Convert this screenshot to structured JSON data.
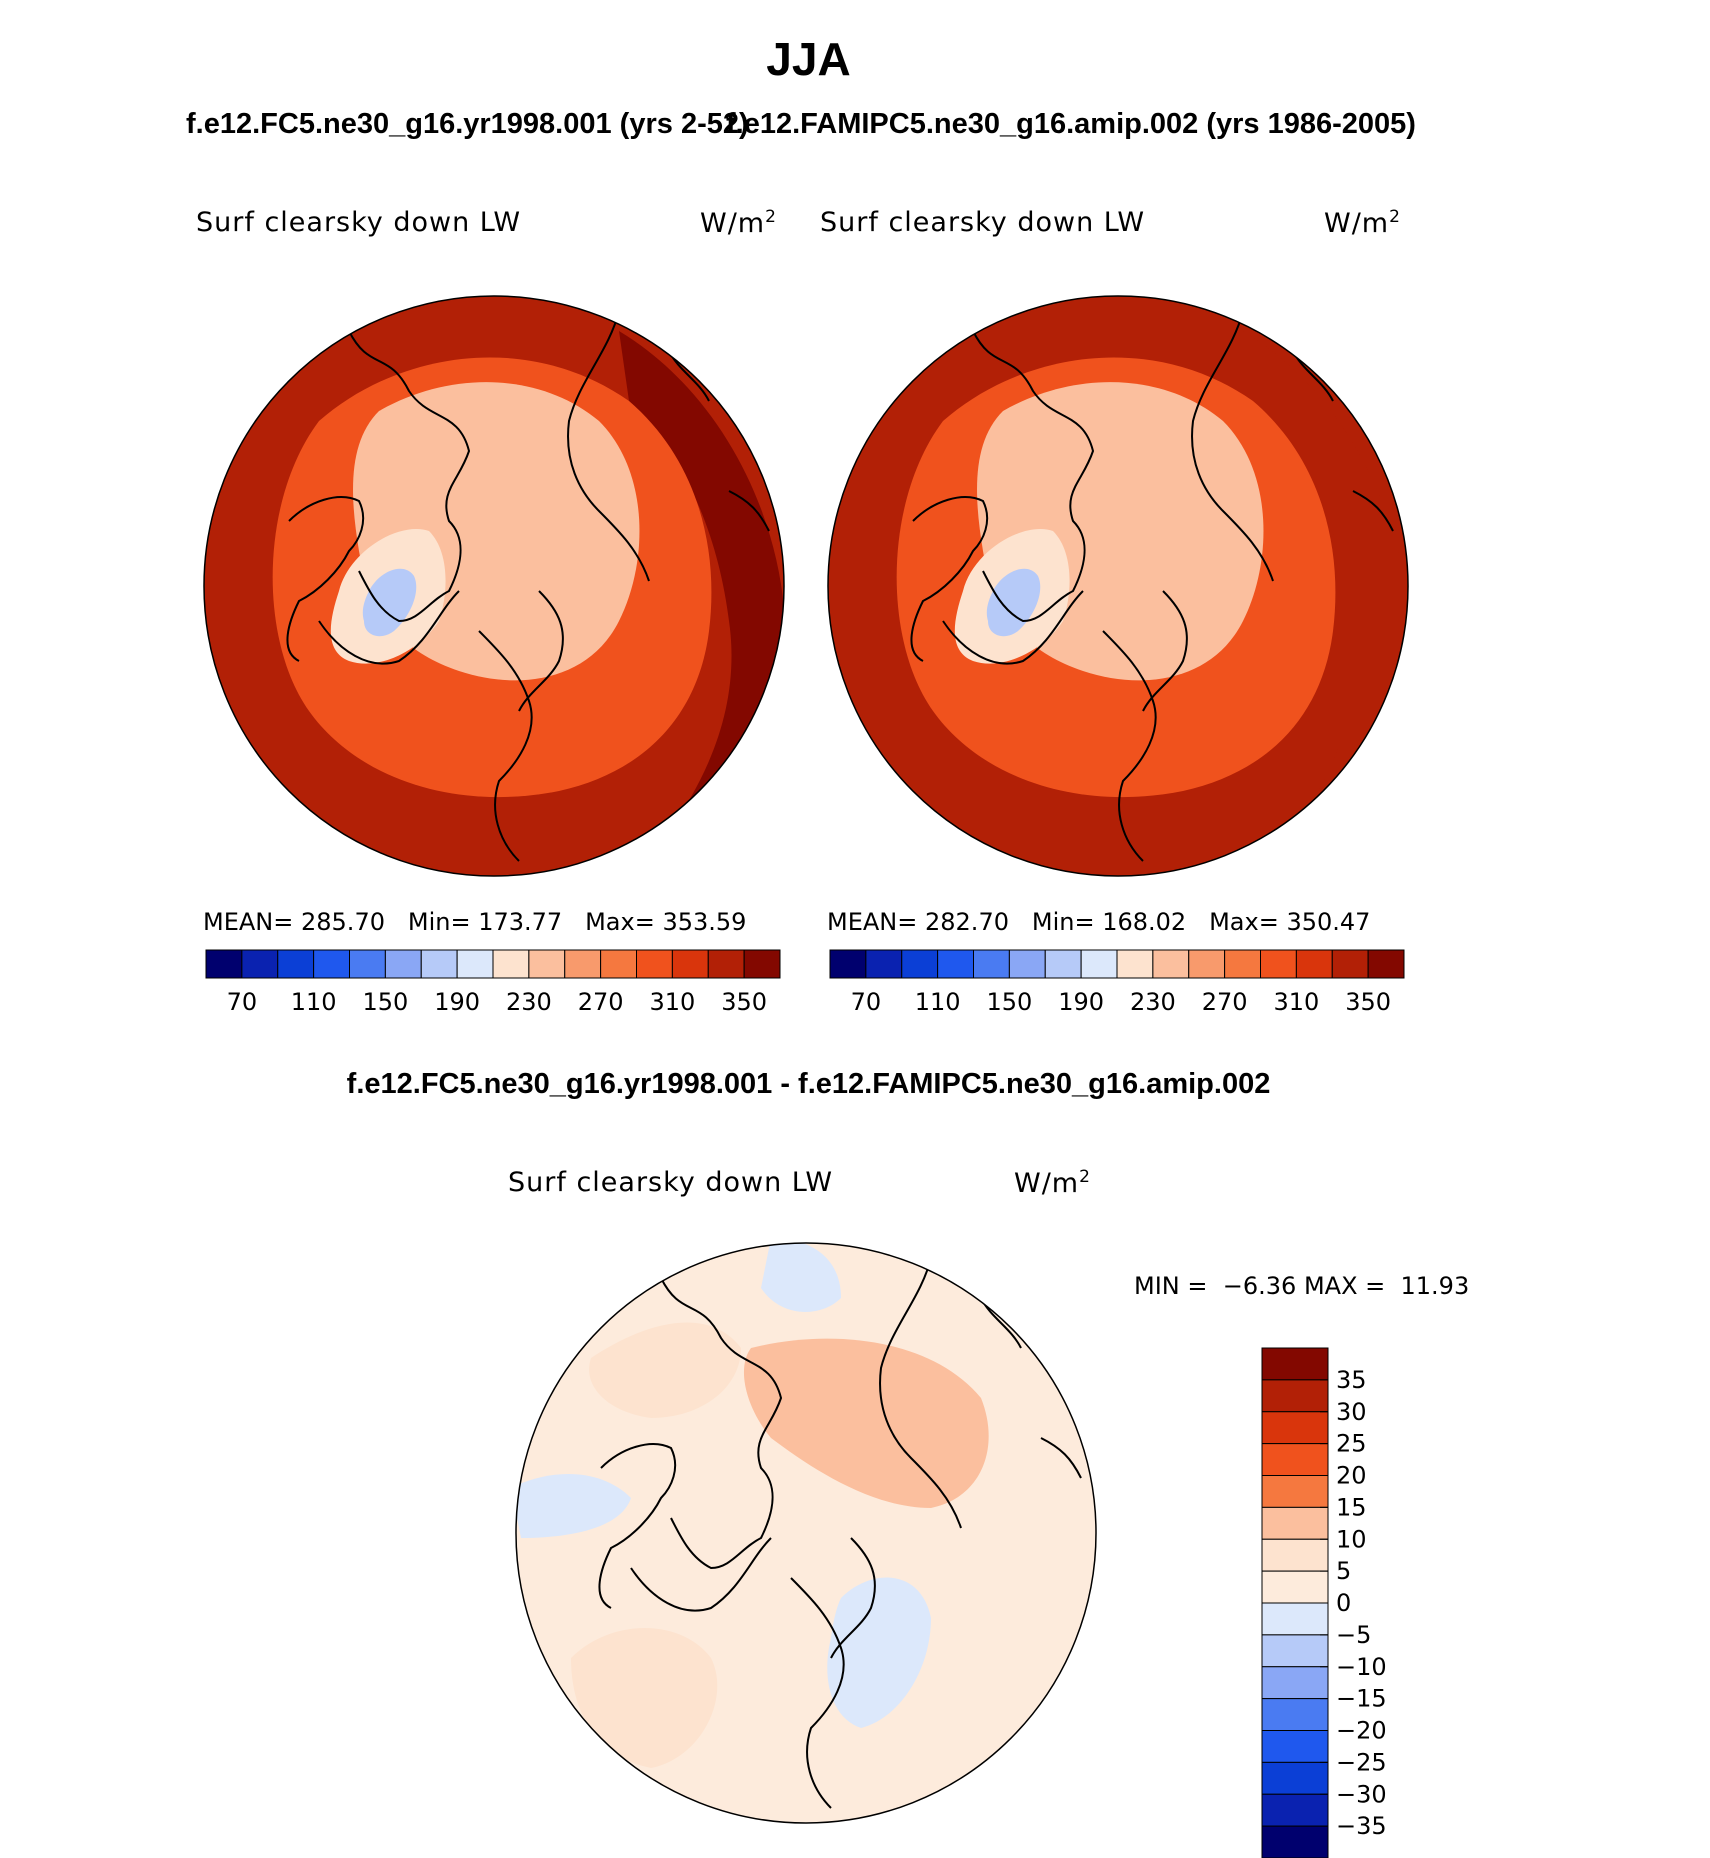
{
  "season": "JJA",
  "panels": [
    {
      "run": "f.e12.FC5.ne30_g16.yr1998.001 (yrs 2-52)",
      "variable": "Surf clearsky down LW",
      "units": "W/m",
      "units_exp": "2",
      "stats": {
        "mean_label": "MEAN=",
        "mean": "285.70",
        "min_label": "Min=",
        "min": "173.77",
        "max_label": "Max=",
        "max": "353.59"
      }
    },
    {
      "run": "f.e12.FAMIPC5.ne30_g16.amip.002 (yrs 1986-2005)",
      "variable": "Surf clearsky down LW",
      "units": "W/m",
      "units_exp": "2",
      "stats": {
        "mean_label": "MEAN=",
        "mean": "282.70",
        "min_label": "Min=",
        "min": "168.02",
        "max_label": "Max=",
        "max": "350.47"
      }
    }
  ],
  "difference": {
    "title": "f.e12.FC5.ne30_g16.yr1998.001 - f.e12.FAMIPC5.ne30_g16.amip.002",
    "variable": "Surf clearsky down LW",
    "units": "W/m",
    "units_exp": "2",
    "min_label": "MIN =",
    "min": "−6.36",
    "max_label": "MAX =",
    "max": "11.93"
  },
  "chart_data": [
    {
      "type": "heatmap",
      "projection": "polar-stereographic-north",
      "title": "f.e12.FC5.ne30_g16.yr1998.001 (yrs 2-52)",
      "variable": "Surf clearsky down LW",
      "units": "W/m2",
      "mean": 285.7,
      "min": 173.77,
      "max": 353.59,
      "colorbar": {
        "orientation": "horizontal",
        "tick_labels": [
          "70",
          "110",
          "150",
          "190",
          "230",
          "270",
          "310",
          "350"
        ],
        "levels": [
          70,
          90,
          110,
          130,
          150,
          170,
          190,
          210,
          230,
          250,
          270,
          290,
          310,
          330,
          350
        ],
        "colors": [
          "#00006e",
          "#0a22b0",
          "#0b3fd6",
          "#1f58ee",
          "#4a7bf2",
          "#8aa7f5",
          "#b6caf8",
          "#dce8fb",
          "#fde3cf",
          "#fbbf9e",
          "#f89a6c",
          "#f5783f",
          "#f0521d",
          "#d9350c",
          "#b22006",
          "#830800"
        ]
      },
      "regions": [
        {
          "name": "outer-low-latitudes",
          "approx_value": 330
        },
        {
          "name": "pacific-asia-warm-band",
          "approx_value": 350
        },
        {
          "name": "subarctic",
          "approx_value": 300
        },
        {
          "name": "arctic-ocean",
          "approx_value": 240
        },
        {
          "name": "greenland-margin",
          "approx_value": 215
        },
        {
          "name": "greenland-interior",
          "approx_value": 180
        }
      ]
    },
    {
      "type": "heatmap",
      "projection": "polar-stereographic-north",
      "title": "f.e12.FAMIPC5.ne30_g16.amip.002 (yrs 1986-2005)",
      "variable": "Surf clearsky down LW",
      "units": "W/m2",
      "mean": 282.7,
      "min": 168.02,
      "max": 350.47,
      "colorbar": {
        "orientation": "horizontal",
        "tick_labels": [
          "70",
          "110",
          "150",
          "190",
          "230",
          "270",
          "310",
          "350"
        ],
        "levels": [
          70,
          90,
          110,
          130,
          150,
          170,
          190,
          210,
          230,
          250,
          270,
          290,
          310,
          330,
          350
        ],
        "colors": [
          "#00006e",
          "#0a22b0",
          "#0b3fd6",
          "#1f58ee",
          "#4a7bf2",
          "#8aa7f5",
          "#b6caf8",
          "#dce8fb",
          "#fde3cf",
          "#fbbf9e",
          "#f89a6c",
          "#f5783f",
          "#f0521d",
          "#d9350c",
          "#b22006",
          "#830800"
        ]
      },
      "regions": [
        {
          "name": "outer-low-latitudes",
          "approx_value": 330
        },
        {
          "name": "pacific-asia-warm-band",
          "approx_value": 340
        },
        {
          "name": "subarctic",
          "approx_value": 300
        },
        {
          "name": "arctic-ocean",
          "approx_value": 235
        },
        {
          "name": "greenland-margin",
          "approx_value": 210
        },
        {
          "name": "greenland-interior",
          "approx_value": 170
        }
      ]
    },
    {
      "type": "heatmap",
      "projection": "polar-stereographic-north",
      "title": "f.e12.FC5.ne30_g16.yr1998.001 - f.e12.FAMIPC5.ne30_g16.amip.002",
      "variable": "Surf clearsky down LW",
      "units": "W/m2",
      "min": -6.36,
      "max": 11.93,
      "colorbar": {
        "orientation": "vertical",
        "tick_labels": [
          "35",
          "30",
          "25",
          "20",
          "15",
          "10",
          "5",
          "0",
          "−5",
          "−10",
          "−15",
          "−20",
          "−25",
          "−30",
          "−35"
        ],
        "levels": [
          35,
          30,
          25,
          20,
          15,
          10,
          5,
          0,
          -5,
          -10,
          -15,
          -20,
          -25,
          -30,
          -35
        ],
        "colors": [
          "#830800",
          "#b22006",
          "#d9350c",
          "#f0521d",
          "#f5783f",
          "#fbbf9e",
          "#fde3cf",
          "#fdebdc",
          "#dce8fb",
          "#b6caf8",
          "#8aa7f5",
          "#4a7bf2",
          "#1f58ee",
          "#0b3fd6",
          "#0a22b0",
          "#00006e"
        ]
      },
      "regions": [
        {
          "name": "background",
          "approx_value": 2
        },
        {
          "name": "north-america-positive",
          "approx_value": 7
        },
        {
          "name": "siberia-positive",
          "approx_value": 7
        },
        {
          "name": "central-asia-positive",
          "approx_value": 12
        },
        {
          "name": "europe-negative",
          "approx_value": -3
        },
        {
          "name": "alaska-negative",
          "approx_value": -3
        },
        {
          "name": "east-asia-negative",
          "approx_value": -3
        }
      ]
    }
  ]
}
